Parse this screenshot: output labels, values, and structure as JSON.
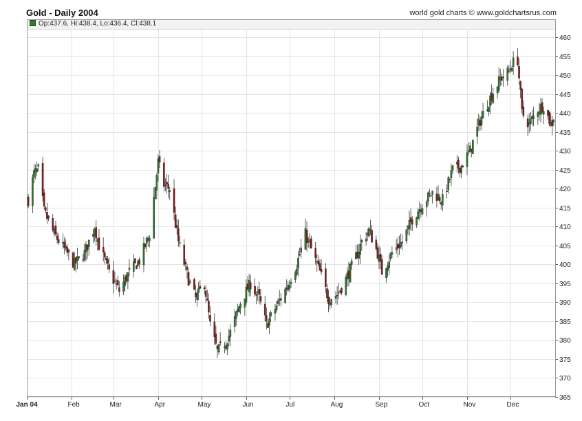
{
  "header": {
    "title": "Gold - Daily 2004",
    "credit": "world gold charts © www.goldchartsrus.com"
  },
  "ohlc": {
    "text": "Op:437.6, Hi:438.4, Lo:436.4, Cl:438.1"
  },
  "colors": {
    "up_candle": "#2f7a2f",
    "down_candle": "#8b1a1a",
    "grid": "#e4e4e4",
    "axis": "#555555"
  },
  "chart_data": {
    "type": "candlestick",
    "title": "Gold - Daily 2004",
    "ylim": [
      365,
      462
    ],
    "yticks": [
      365,
      370,
      375,
      380,
      385,
      390,
      395,
      400,
      405,
      410,
      415,
      420,
      425,
      430,
      435,
      440,
      445,
      450,
      455,
      460
    ],
    "xlim": [
      "2004-01-01",
      "2004-12-31"
    ],
    "month_labels": [
      "Jan 04",
      "Feb",
      "Mar",
      "Apr",
      "May",
      "Jun",
      "Jul",
      "Aug",
      "Sep",
      "Oct",
      "Nov",
      "Dec"
    ],
    "grid": true,
    "series": [
      {
        "close_keypoints": [
          [
            "2004-01-02",
            417
          ],
          [
            "2004-01-06",
            424
          ],
          [
            "2004-01-09",
            425
          ],
          [
            "2004-01-13",
            414
          ],
          [
            "2004-01-20",
            408
          ],
          [
            "2004-01-27",
            404
          ],
          [
            "2004-02-03",
            400
          ],
          [
            "2004-02-10",
            403
          ],
          [
            "2004-02-17",
            410
          ],
          [
            "2004-02-20",
            405
          ],
          [
            "2004-02-27",
            398
          ],
          [
            "2004-03-05",
            393
          ],
          [
            "2004-03-12",
            398
          ],
          [
            "2004-03-19",
            401
          ],
          [
            "2004-03-26",
            408
          ],
          [
            "2004-04-01",
            427
          ],
          [
            "2004-04-05",
            421
          ],
          [
            "2004-04-09",
            420
          ],
          [
            "2004-04-15",
            406
          ],
          [
            "2004-04-22",
            396
          ],
          [
            "2004-04-27",
            391
          ],
          [
            "2004-05-03",
            395
          ],
          [
            "2004-05-07",
            384
          ],
          [
            "2004-05-12",
            377
          ],
          [
            "2004-05-17",
            379
          ],
          [
            "2004-05-21",
            382
          ],
          [
            "2004-05-28",
            390
          ],
          [
            "2004-06-04",
            395
          ],
          [
            "2004-06-10",
            391
          ],
          [
            "2004-06-15",
            384
          ],
          [
            "2004-06-22",
            389
          ],
          [
            "2004-06-29",
            394
          ],
          [
            "2004-07-06",
            400
          ],
          [
            "2004-07-12",
            408
          ],
          [
            "2004-07-16",
            404
          ],
          [
            "2004-07-22",
            398
          ],
          [
            "2004-07-28",
            391
          ],
          [
            "2004-08-03",
            392
          ],
          [
            "2004-08-09",
            396
          ],
          [
            "2004-08-16",
            402
          ],
          [
            "2004-08-20",
            406
          ],
          [
            "2004-08-25",
            409
          ],
          [
            "2004-08-31",
            403
          ],
          [
            "2004-09-03",
            398
          ],
          [
            "2004-09-10",
            403
          ],
          [
            "2004-09-17",
            406
          ],
          [
            "2004-09-24",
            412
          ],
          [
            "2004-10-01",
            416
          ],
          [
            "2004-10-08",
            419
          ],
          [
            "2004-10-15",
            417
          ],
          [
            "2004-10-22",
            425
          ],
          [
            "2004-10-28",
            426
          ],
          [
            "2004-11-03",
            430
          ],
          [
            "2004-11-10",
            438
          ],
          [
            "2004-11-17",
            444
          ],
          [
            "2004-11-24",
            449
          ],
          [
            "2004-11-30",
            451
          ],
          [
            "2004-12-02",
            453
          ],
          [
            "2004-12-06",
            454
          ],
          [
            "2004-12-09",
            440
          ],
          [
            "2004-12-14",
            437
          ],
          [
            "2004-12-20",
            441
          ],
          [
            "2004-12-24",
            442
          ],
          [
            "2004-12-29",
            437
          ],
          [
            "2004-12-31",
            438
          ]
        ],
        "last": {
          "open": 437.6,
          "high": 438.4,
          "low": 436.4,
          "close": 438.1
        }
      }
    ]
  }
}
